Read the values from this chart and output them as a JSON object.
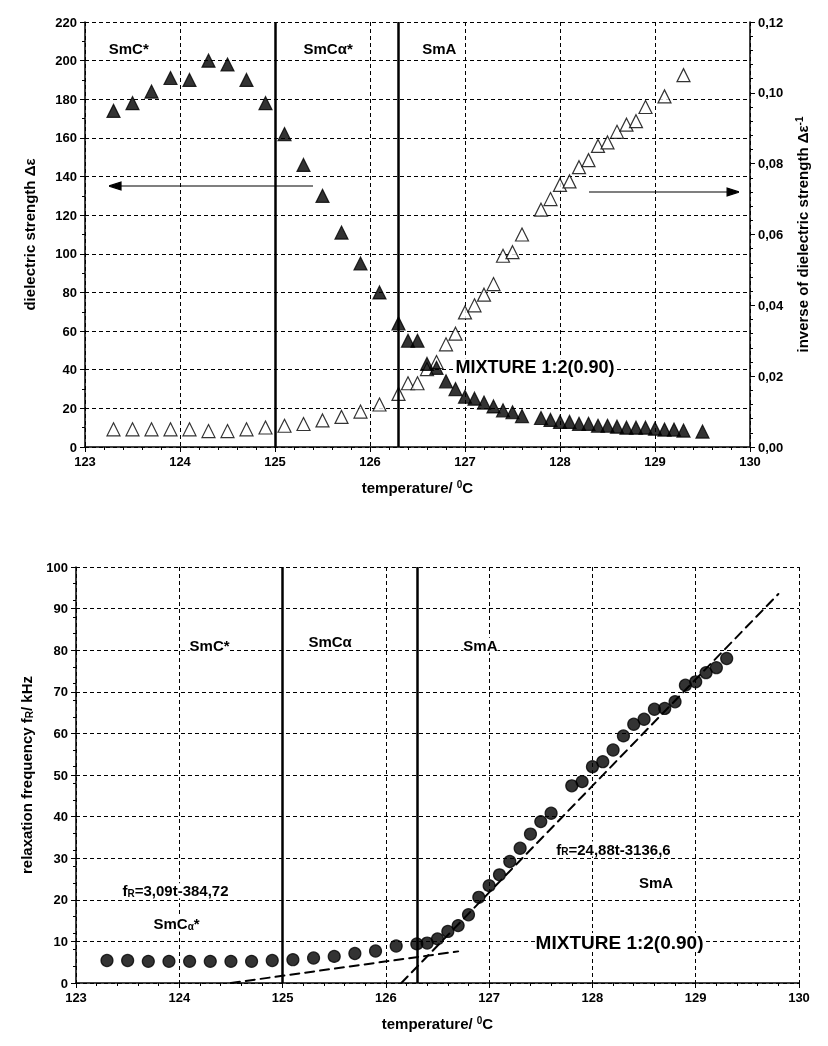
{
  "chart_data": [
    {
      "type": "scatter",
      "xlabel": "temperature/ $^{0}$C",
      "ylabel": "dielectric strength Δε",
      "y2label": "inverse of dielectric strength Δε$^{-1}$",
      "annotations": [
        "SmC*",
        "SmCα*",
        "SmA",
        "MIXTURE 1:2(0.90)"
      ],
      "series": [
        {
          "color": "#000000",
          "marker": "triangle",
          "x": [
            123.3,
            123.5,
            123.7,
            123.9,
            124.1,
            124.3,
            124.5,
            124.7,
            124.9,
            125.1,
            125.3,
            125.5,
            125.7,
            125.9,
            126.1,
            126.3,
            126.4,
            126.5,
            126.6,
            126.7,
            126.8,
            126.9,
            127.0,
            127.1,
            127.2,
            127.3,
            127.4,
            127.5,
            127.6,
            127.8,
            127.9,
            128.0,
            128.1,
            128.2,
            128.3,
            128.4,
            128.5,
            128.6,
            128.7,
            128.8,
            128.9,
            129.0,
            129.1,
            129.2,
            129.3,
            129.5
          ],
          "values": [
            174,
            178,
            184,
            191,
            190,
            200,
            198,
            190,
            178,
            162,
            146,
            130,
            111,
            95,
            80,
            64,
            55,
            55,
            43,
            41,
            34,
            30,
            26,
            25,
            23,
            21,
            19,
            18,
            16,
            15,
            14,
            13,
            13,
            12,
            12,
            11,
            11,
            10.5,
            10,
            10,
            10,
            9.5,
            9,
            9,
            8.5,
            8
          ]
        },
        {
          "color": "#ffffff",
          "marker": "triangle",
          "axis": "y2",
          "x": [
            123.3,
            123.5,
            123.7,
            123.9,
            124.1,
            124.3,
            124.5,
            124.7,
            124.9,
            125.1,
            125.3,
            125.5,
            125.7,
            125.9,
            126.1,
            126.3,
            126.4,
            126.5,
            126.6,
            126.7,
            126.8,
            126.9,
            127.0,
            127.1,
            127.2,
            127.3,
            127.4,
            127.5,
            127.6,
            127.8,
            127.9,
            128.0,
            128.1,
            128.2,
            128.3,
            128.4,
            128.5,
            128.6,
            128.7,
            128.8,
            128.9,
            129.1,
            129.3
          ],
          "values": [
            0.005,
            0.005,
            0.005,
            0.005,
            0.005,
            0.0045,
            0.0045,
            0.005,
            0.0055,
            0.006,
            0.0065,
            0.0075,
            0.0085,
            0.01,
            0.012,
            0.015,
            0.018,
            0.018,
            0.022,
            0.024,
            0.029,
            0.032,
            0.038,
            0.04,
            0.043,
            0.046,
            0.054,
            0.055,
            0.06,
            0.067,
            0.07,
            0.074,
            0.075,
            0.079,
            0.081,
            0.085,
            0.086,
            0.089,
            0.091,
            0.092,
            0.096,
            0.099,
            0.105
          ]
        }
      ],
      "xlim": [
        123,
        130
      ],
      "xticks": [
        123,
        124,
        125,
        126,
        127,
        128,
        129,
        130
      ],
      "ylim": [
        0,
        220
      ],
      "yticks": [
        0,
        20,
        40,
        60,
        80,
        100,
        120,
        140,
        160,
        180,
        200,
        220
      ],
      "y2lim": [
        0,
        0.12
      ],
      "y2ticks": [
        {
          "value": 0,
          "label": "0,00"
        },
        {
          "value": 0.02,
          "label": "0,02"
        },
        {
          "value": 0.04,
          "label": "0,04"
        },
        {
          "value": 0.06,
          "label": "0,06"
        },
        {
          "value": 0.08,
          "label": "0,08"
        },
        {
          "value": 0.1,
          "label": "0,10"
        },
        {
          "value": 0.12,
          "label": "0,12"
        }
      ],
      "ref_lines": [
        {
          "axis": "x",
          "value": 125,
          "color": "#000000",
          "line_style": "solid"
        },
        {
          "axis": "x",
          "value": 126.3,
          "color": "#000000",
          "line_style": "solid"
        }
      ],
      "grid": true
    },
    {
      "type": "scatter",
      "xlabel": "temperature/ $^{0}$C",
      "ylabel": "relaxation frequency f$_{R}$/ kHz",
      "annotations": [
        "SmC*",
        "SmCα",
        "SmA",
        "f$_{R}$=3,09t-384,72",
        "SmC$_{α}$*",
        "f$_{R}$=24,88t-3136,6",
        "SmA",
        "MIXTURE 1:2(0.90)"
      ],
      "series": [
        {
          "color": "#000000",
          "marker": "circle",
          "x": [
            123.3,
            123.5,
            123.7,
            123.9,
            124.1,
            124.3,
            124.5,
            124.7,
            124.9,
            125.1,
            125.3,
            125.5,
            125.7,
            125.9,
            126.1,
            126.3,
            126.4,
            126.5,
            126.6,
            126.7,
            126.8,
            126.9,
            127.0,
            127.1,
            127.2,
            127.3,
            127.4,
            127.5,
            127.6,
            127.8,
            127.9,
            128.0,
            128.1,
            128.2,
            128.3,
            128.4,
            128.5,
            128.6,
            128.7,
            128.8,
            128.9,
            129.0,
            129.1,
            129.2,
            129.3
          ],
          "values": [
            5.4,
            5.4,
            5.2,
            5.2,
            5.2,
            5.2,
            5.2,
            5.2,
            5.4,
            5.6,
            6.0,
            6.4,
            7.1,
            7.7,
            8.9,
            9.4,
            9.6,
            10.6,
            12.4,
            13.8,
            16.4,
            20.6,
            23.4,
            26,
            29.2,
            32.4,
            35.8,
            38.8,
            40.8,
            47.4,
            48.4,
            52,
            53.2,
            56,
            59.4,
            62.2,
            63.4,
            65.8,
            66,
            67.6,
            71.6,
            72.4,
            74.6,
            75.8,
            78
          ]
        },
        {
          "type": "line",
          "color": "#000000",
          "marker": "none",
          "line_style": "dashed",
          "x": [
            124.5,
            126.7
          ],
          "values": [
            0,
            7.6
          ]
        },
        {
          "type": "line",
          "color": "#000000",
          "marker": "none",
          "line_style": "dashed",
          "x": [
            126.15,
            129.8
          ],
          "values": [
            0,
            93.5
          ]
        }
      ],
      "xlim": [
        123,
        130
      ],
      "xticks": [
        123,
        124,
        125,
        126,
        127,
        128,
        129,
        130
      ],
      "ylim": [
        0,
        100
      ],
      "yticks": [
        0,
        10,
        20,
        30,
        40,
        50,
        60,
        70,
        80,
        90,
        100
      ],
      "ref_lines": [
        {
          "axis": "x",
          "value": 125,
          "color": "#000000",
          "line_style": "solid"
        },
        {
          "axis": "x",
          "value": 126.3,
          "color": "#000000",
          "line_style": "solid"
        }
      ],
      "grid": true
    }
  ]
}
